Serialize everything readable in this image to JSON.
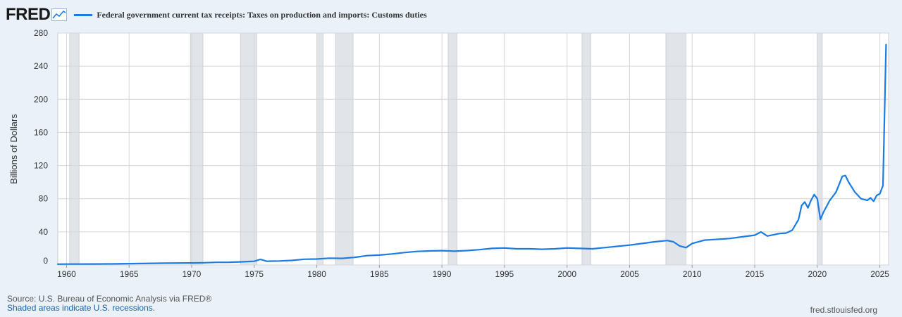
{
  "header": {
    "logo": "FRED",
    "logo_icon": "chart-line-icon",
    "series_title": "Federal government current tax receipts: Taxes on production and imports: Customs duties"
  },
  "footer": {
    "source": "Source: U.S. Bureau of Economic Analysis via FRED®",
    "note": "Shaded areas indicate U.S. recessions.",
    "url": "fred.stlouisfed.org"
  },
  "colors": {
    "line": "#1c7ce3",
    "recession": "#e1e5ea",
    "background": "#eaf1f9"
  },
  "chart_data": {
    "type": "line",
    "title": "",
    "xlabel": "",
    "ylabel": "Billions of Dollars",
    "xlim": [
      1959.3,
      2025.7
    ],
    "ylim": [
      0,
      280
    ],
    "xticks": [
      1960,
      1965,
      1970,
      1975,
      1980,
      1985,
      1990,
      1995,
      2000,
      2005,
      2010,
      2015,
      2020,
      2025
    ],
    "yticks": [
      0,
      40,
      80,
      120,
      160,
      200,
      240,
      280
    ],
    "grid": true,
    "recessions": [
      [
        1960.25,
        1961.0
      ],
      [
        1969.9,
        1970.9
      ],
      [
        1973.9,
        1975.2
      ],
      [
        1980.0,
        1980.5
      ],
      [
        1981.5,
        1982.9
      ],
      [
        1990.5,
        1991.2
      ],
      [
        2001.2,
        2001.9
      ],
      [
        2007.9,
        2009.5
      ],
      [
        2020.0,
        2020.4
      ]
    ],
    "series": [
      {
        "x": [
          1959.0,
          1960,
          1962,
          1964,
          1966,
          1968,
          1970,
          1971,
          1972,
          1973,
          1974,
          1975,
          1975.5,
          1976,
          1977,
          1978,
          1979,
          1980,
          1981,
          1982,
          1983,
          1984,
          1985,
          1986,
          1987,
          1988,
          1989,
          1990,
          1991,
          1992,
          1993,
          1994,
          1995,
          1996,
          1997,
          1998,
          1999,
          2000,
          2001,
          2002,
          2003,
          2004,
          2005,
          2006,
          2007,
          2008,
          2008.5,
          2009,
          2009.5,
          2010,
          2011,
          2012,
          2013,
          2014,
          2015,
          2015.5,
          2016,
          2017,
          2017.5,
          2018,
          2018.5,
          2018.75,
          2019,
          2019.25,
          2019.5,
          2019.75,
          2020,
          2020.25,
          2020.5,
          2021,
          2021.5,
          2022,
          2022.25,
          2022.5,
          2023,
          2023.5,
          2024,
          2024.25,
          2024.5,
          2024.75,
          2025,
          2025.25,
          2025.5
        ],
        "y": [
          1.0,
          1.1,
          1.2,
          1.4,
          1.8,
          2.2,
          2.5,
          2.7,
          3.2,
          3.3,
          3.8,
          4.5,
          6.8,
          4.5,
          4.8,
          5.5,
          7.0,
          7.2,
          8.2,
          8.0,
          9.2,
          11.3,
          12.0,
          13.3,
          15.0,
          16.4,
          17.0,
          17.3,
          16.6,
          17.4,
          18.5,
          20.0,
          20.5,
          19.5,
          19.5,
          19.0,
          19.5,
          20.5,
          20.0,
          19.5,
          21.0,
          22.5,
          24.0,
          26.0,
          28.0,
          29.5,
          28.0,
          23.0,
          21.0,
          26.0,
          30.0,
          31.0,
          32.0,
          34.0,
          36.0,
          40.0,
          35.0,
          38.0,
          38.5,
          42.0,
          55.0,
          72.0,
          76.0,
          69.0,
          78.0,
          85.0,
          80.0,
          55.0,
          64.0,
          78.0,
          88.0,
          107.0,
          108.0,
          100.0,
          88.0,
          80.0,
          78.0,
          81.0,
          77.0,
          84.0,
          86.0,
          96.0,
          266.0
        ]
      }
    ]
  }
}
